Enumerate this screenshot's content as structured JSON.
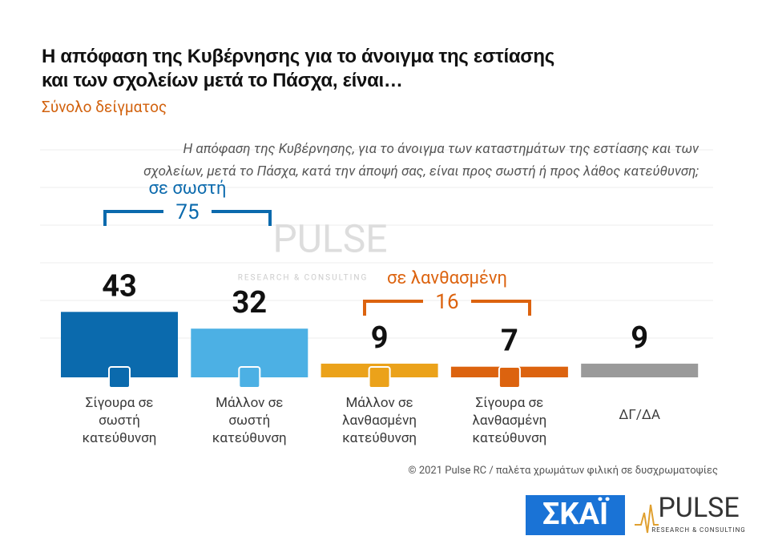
{
  "chart_data": {
    "type": "bar",
    "title": "Η απόφαση της Κυβέρνησης για το άνοιγμα της εστίασης και των σχολείων μετά το Πάσχα, είναι…",
    "subtitle": "Σύνολο δείγματος",
    "question": "Η απόφαση της Κυβέρνησης, για το άνοιγμα των καταστημάτων της εστίασης και των σχολείων, μετά το Πάσχα, κατά την άποψή σας, είναι προς σωστή ή προς λάθος κατεύθυνση;",
    "categories": [
      "Σίγουρα σε σωστή κατεύθυνση",
      "Μάλλον σε σωστή κατεύθυνση",
      "Μάλλον σε λανθασμένη κατεύθυνση",
      "Σίγουρα σε λανθασμένη κατεύθυνση",
      "ΔΓ/ΔΑ"
    ],
    "values": [
      43,
      32,
      9,
      7,
      9
    ],
    "colors": [
      "#0b6aad",
      "#4cb0e4",
      "#eba21a",
      "#dc630f",
      "#9a9a9a"
    ],
    "groups": [
      {
        "label": "σε σωστή",
        "value": 75,
        "color": "#0b6aad"
      },
      {
        "label": "σε λανθασμένη",
        "value": 16,
        "color": "#dc630f"
      }
    ],
    "footer": "© 2021 Pulse RC  /  παλέτα χρωμάτων φιλική σε δυσχρωματοψίες",
    "logos": {
      "skai": "ΣΚΑΪ",
      "pulse": "PULSE",
      "pulse_sub": "RESEARCH & CONSULTING"
    }
  }
}
